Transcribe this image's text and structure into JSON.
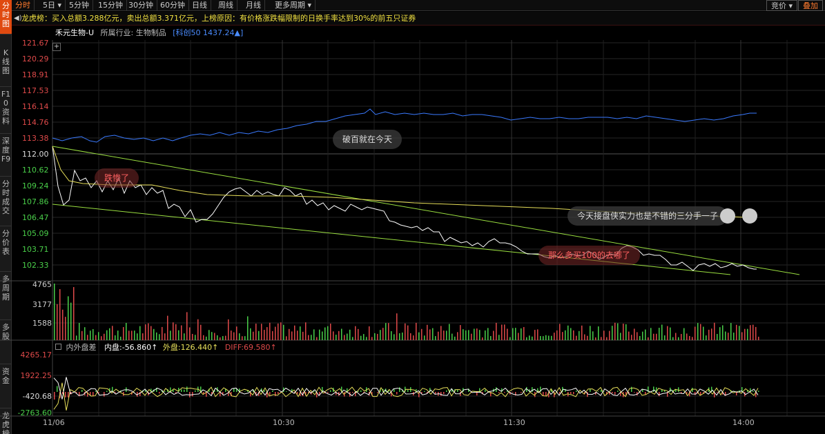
{
  "sidebar": {
    "items": [
      "分时图",
      "K线图",
      "F10资料",
      "深度F9",
      "分时成交",
      "分价表",
      "多周期",
      "多股",
      "资金",
      "龙虎榜"
    ]
  },
  "toolbar": {
    "period_buttons": [
      "分时",
      "5日",
      "5分钟",
      "15分钟",
      "30分钟",
      "60分钟",
      "日线",
      "周线",
      "月线",
      "更多周期"
    ],
    "active": "分时",
    "right_buttons": [
      "竞价",
      "叠加"
    ]
  },
  "notice": {
    "text": "龙虎榜：买入总额3.288亿元，卖出总额3.371亿元，上榜原因：有价格涨跌幅限制的日换手率达到30%的前五只证券"
  },
  "stock_info": {
    "name": "禾元生物-U",
    "industry_label": "所属行业:",
    "industry": "生物制品",
    "index": "[科创50 1437.24▲]"
  },
  "price_axis": [
    "121.67",
    "120.29",
    "118.91",
    "117.53",
    "116.14",
    "114.76",
    "113.38",
    "112.00",
    "110.62",
    "109.24",
    "107.86",
    "106.47",
    "105.09",
    "103.71",
    "102.33"
  ],
  "volume_axis": [
    "4765",
    "3177",
    "1588"
  ],
  "osc_axis": [
    "4265.17",
    "1922.25",
    "-420.68",
    "-2763.60"
  ],
  "osc_legend": {
    "title": "内外盘差",
    "inner": "内盘:-56.860↑",
    "outer": "外盘:126.440↑",
    "diff": "DIFF:69.580↑"
  },
  "time_axis": [
    "11/06",
    "10:30",
    "11:30",
    "14:00"
  ],
  "comments": [
    "跌惨了",
    "破百就在今天",
    "今天接盘侠实力也是不错的三分手一子",
    "那么多买100的去哪了"
  ],
  "colors": {
    "up": "#e04a4a",
    "down": "#4ad04a",
    "price_line": "#ffffff",
    "avg_line": "#e8e05a",
    "index_line": "#3a7aff",
    "trend_line": "#9be040",
    "accent": "#e04a10"
  }
}
